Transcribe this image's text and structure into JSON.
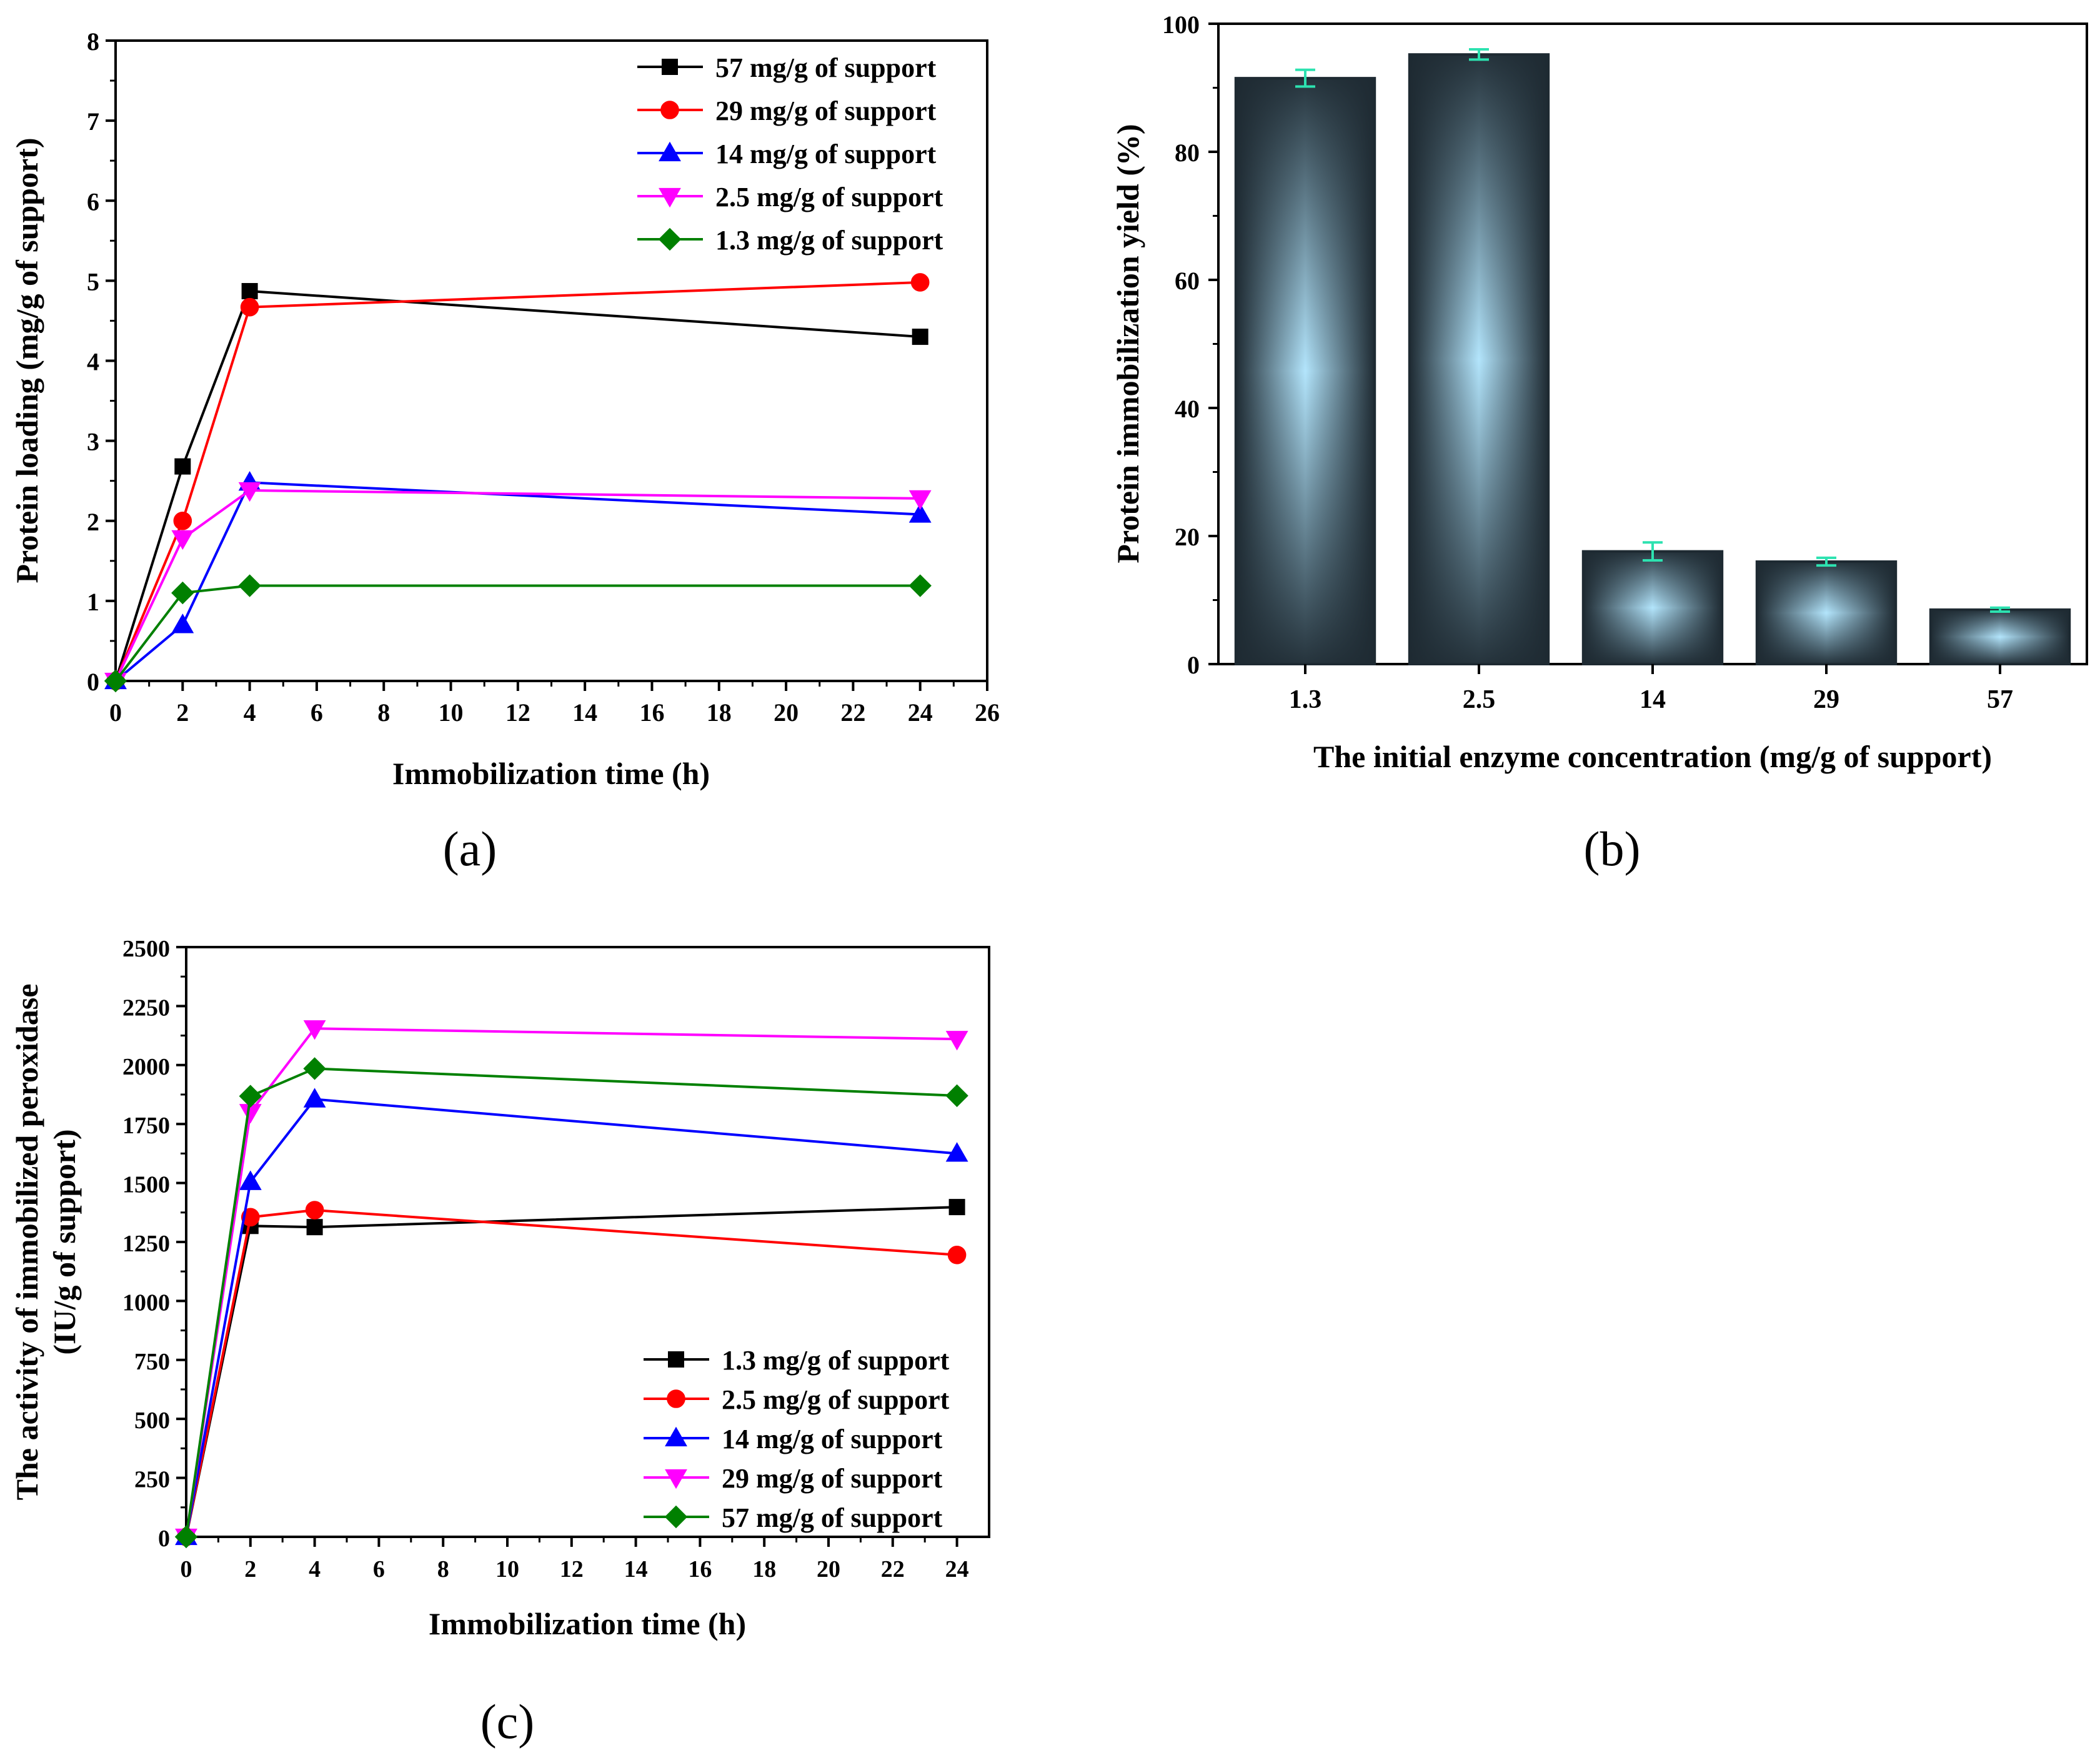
{
  "chart_data": [
    {
      "panel": "a",
      "panel_label": "(a)",
      "type": "line",
      "xlabel": "Immobilization time (h)",
      "ylabel": "Protein loading (mg/g of support)",
      "xlim": [
        0,
        26
      ],
      "ylim": [
        0,
        8
      ],
      "x_ticks": [
        "0",
        "2",
        "4",
        "6",
        "8",
        "10",
        "12",
        "14",
        "16",
        "18",
        "20",
        "22",
        "24",
        "26"
      ],
      "y_ticks": [
        "0",
        "1",
        "2",
        "3",
        "4",
        "5",
        "6",
        "7",
        "8"
      ],
      "legend_position": "top-right",
      "x": [
        0,
        2,
        4,
        24
      ],
      "series": [
        {
          "name": "57 mg/g of support",
          "color": "#000000",
          "marker": "square",
          "values": [
            0,
            2.68,
            4.87,
            4.3
          ]
        },
        {
          "name": "29 mg/g of support",
          "color": "#ff0000",
          "marker": "circle",
          "values": [
            0,
            2.0,
            4.67,
            4.98
          ]
        },
        {
          "name": "14 mg/g of support",
          "color": "#0000ff",
          "marker": "triangle-up",
          "values": [
            0,
            0.7,
            2.48,
            2.08
          ]
        },
        {
          "name": "2.5 mg/g of support",
          "color": "#ff00ff",
          "marker": "triangle-down",
          "values": [
            0,
            1.78,
            2.38,
            2.28
          ]
        },
        {
          "name": "1.3 mg/g of support",
          "color": "#008000",
          "marker": "diamond",
          "values": [
            0,
            1.1,
            1.19,
            1.19
          ]
        }
      ]
    },
    {
      "panel": "b",
      "panel_label": "(b)",
      "type": "bar",
      "xlabel": "The initial enzyme concentration (mg/g of support)",
      "ylabel": "Protein immobilization yield (%)",
      "ylim": [
        0,
        100
      ],
      "y_ticks": [
        "0",
        "20",
        "40",
        "60",
        "80",
        "100"
      ],
      "categories": [
        "1.3",
        "2.5",
        "14",
        "29",
        "57"
      ],
      "values": [
        91.5,
        95.2,
        17.6,
        16.0,
        8.5
      ],
      "errors": [
        1.3,
        0.8,
        1.4,
        0.6,
        0.3
      ],
      "bar_edge_color": "#1e2a32",
      "bar_center_color": "#b3e5fc",
      "error_bar_color": "#2de2b0"
    },
    {
      "panel": "c",
      "panel_label": "(c)",
      "type": "line",
      "xlabel": "Immobilization time (h)",
      "ylabel_line1": "The activity of immobilized peroxidase",
      "ylabel_line2": "(IU/g of support)",
      "xlim": [
        0,
        25
      ],
      "ylim": [
        0,
        2500
      ],
      "x_ticks": [
        "0",
        "2",
        "4",
        "6",
        "8",
        "10",
        "12",
        "14",
        "16",
        "18",
        "20",
        "22",
        "24"
      ],
      "y_ticks": [
        "0",
        "250",
        "500",
        "750",
        "1000",
        "1250",
        "1500",
        "1750",
        "2000",
        "2250",
        "2500"
      ],
      "legend_position": "bottom-right",
      "x": [
        0,
        2,
        4,
        24
      ],
      "series": [
        {
          "name": "1.3 mg/g of support",
          "color": "#000000",
          "marker": "square",
          "values": [
            0,
            1318,
            1313,
            1398
          ]
        },
        {
          "name": "2.5 mg/g of support",
          "color": "#ff0000",
          "marker": "circle",
          "values": [
            0,
            1355,
            1385,
            1195
          ]
        },
        {
          "name": "14 mg/g of support",
          "color": "#0000ff",
          "marker": "triangle-up",
          "values": [
            0,
            1505,
            1855,
            1625
          ]
        },
        {
          "name": "29 mg/g of support",
          "color": "#ff00ff",
          "marker": "triangle-down",
          "values": [
            0,
            1800,
            2155,
            2110
          ]
        },
        {
          "name": "57 mg/g of support",
          "color": "#008000",
          "marker": "diamond",
          "values": [
            0,
            1868,
            1985,
            1870
          ]
        }
      ]
    }
  ]
}
